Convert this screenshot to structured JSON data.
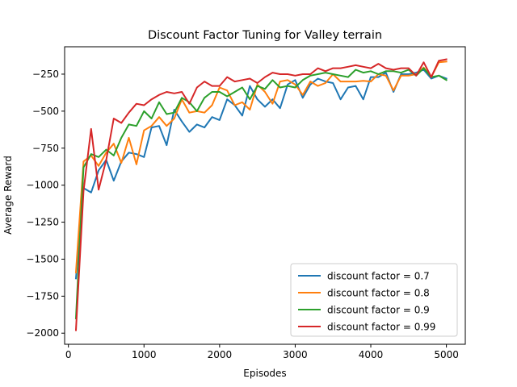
{
  "chart_data": {
    "type": "line",
    "title": "Discount Factor Tuning for Valley terrain",
    "xlabel": "Episodes",
    "ylabel": "Average Reward",
    "xlim": [
      -50,
      5250
    ],
    "ylim": [
      -2075,
      -65
    ],
    "xticks": [
      0,
      1000,
      2000,
      3000,
      4000,
      5000
    ],
    "yticks": [
      -2000,
      -1750,
      -1500,
      -1250,
      -1000,
      -750,
      -500,
      -250
    ],
    "grid": false,
    "legend_position": "lower-right",
    "x": [
      100,
      200,
      300,
      400,
      500,
      600,
      700,
      800,
      900,
      1000,
      1100,
      1200,
      1300,
      1400,
      1500,
      1600,
      1700,
      1800,
      1900,
      2000,
      2100,
      2200,
      2300,
      2400,
      2500,
      2600,
      2700,
      2800,
      2900,
      3000,
      3100,
      3200,
      3300,
      3400,
      3500,
      3600,
      3700,
      3800,
      3900,
      4000,
      4100,
      4200,
      4300,
      4400,
      4500,
      4600,
      4700,
      4800,
      4900,
      5000
    ],
    "series": [
      {
        "name": "discount factor = 0.7",
        "color": "#1f77b4",
        "values": [
          -1630,
          -1020,
          -1050,
          -900,
          -830,
          -970,
          -840,
          -780,
          -790,
          -810,
          -610,
          -600,
          -730,
          -490,
          -570,
          -640,
          -590,
          -610,
          -540,
          -560,
          -420,
          -460,
          -530,
          -330,
          -420,
          -470,
          -420,
          -480,
          -320,
          -290,
          -410,
          -320,
          -280,
          -300,
          -310,
          -420,
          -340,
          -330,
          -420,
          -270,
          -270,
          -240,
          -370,
          -250,
          -250,
          -240,
          -220,
          -280,
          -260,
          -280
        ]
      },
      {
        "name": "discount factor = 0.8",
        "color": "#ff7f0e",
        "values": [
          -1590,
          -840,
          -800,
          -870,
          -780,
          -720,
          -850,
          -680,
          -860,
          -630,
          -600,
          -540,
          -600,
          -550,
          -420,
          -510,
          -500,
          -510,
          -460,
          -340,
          -360,
          -460,
          -440,
          -490,
          -320,
          -370,
          -450,
          -300,
          -290,
          -320,
          -390,
          -300,
          -330,
          -310,
          -250,
          -300,
          -300,
          -300,
          -295,
          -300,
          -250,
          -260,
          -360,
          -260,
          -260,
          -250,
          -205,
          -270,
          -170,
          -165
        ]
      },
      {
        "name": "discount factor = 0.9",
        "color": "#2ca02c",
        "values": [
          -1900,
          -880,
          -790,
          -810,
          -760,
          -800,
          -680,
          -590,
          -600,
          -500,
          -550,
          -440,
          -520,
          -510,
          -410,
          -440,
          -500,
          -410,
          -370,
          -370,
          -400,
          -370,
          -340,
          -420,
          -330,
          -350,
          -290,
          -340,
          -330,
          -340,
          -290,
          -260,
          -250,
          -240,
          -250,
          -260,
          -270,
          -220,
          -240,
          -230,
          -250,
          -230,
          -230,
          -240,
          -220,
          -260,
          -210,
          -270,
          -260,
          -290
        ]
      },
      {
        "name": "discount factor = 0.99",
        "color": "#d62728",
        "values": [
          -1980,
          -1040,
          -620,
          -1030,
          -830,
          -550,
          -580,
          -510,
          -450,
          -460,
          -420,
          -390,
          -370,
          -380,
          -370,
          -450,
          -340,
          -300,
          -330,
          -330,
          -270,
          -300,
          -290,
          -280,
          -310,
          -270,
          -240,
          -250,
          -250,
          -260,
          -250,
          -250,
          -210,
          -230,
          -210,
          -210,
          -200,
          -190,
          -200,
          -210,
          -180,
          -210,
          -220,
          -210,
          -210,
          -260,
          -170,
          -270,
          -160,
          -150
        ]
      }
    ]
  }
}
